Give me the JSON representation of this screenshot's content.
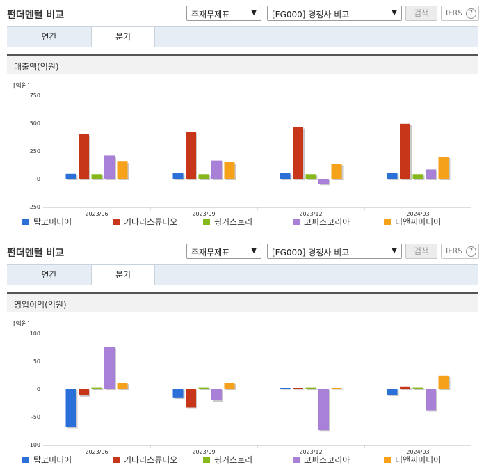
{
  "panels": [
    {
      "title": "펀더멘털 비교",
      "select1": "주재무제표",
      "select2": "[FG000] 경쟁사 비교",
      "search_label": "검색",
      "ifrs_label": "IFRS",
      "ifrs_help": "?",
      "tabs": [
        {
          "label": "연간",
          "active": false
        },
        {
          "label": "분기",
          "active": true
        }
      ],
      "metric_title": "매출액(억원)"
    },
    {
      "title": "펀더멘털 비교",
      "select1": "주재무제표",
      "select2": "[FG000] 경쟁사 비교",
      "search_label": "검색",
      "ifrs_label": "IFRS",
      "ifrs_help": "?",
      "tabs": [
        {
          "label": "연간",
          "active": false
        },
        {
          "label": "분기",
          "active": true
        }
      ],
      "metric_title": "영업이익(억원)"
    }
  ],
  "colors": {
    "series": [
      "#2b6fd8",
      "#c8361a",
      "#86b81c",
      "#a880d8",
      "#f5a11a"
    ]
  },
  "icons": {
    "dropdown": "chevron-down-icon",
    "help": "question-circle-icon"
  },
  "chart_data": [
    {
      "type": "bar",
      "unit_label": "[억원]",
      "categories": [
        "2023/06",
        "2023/09",
        "2023/12",
        "2024/03"
      ],
      "ylim": [
        -250,
        750
      ],
      "yticks": [
        750,
        500,
        250,
        0,
        -250
      ],
      "grid": false,
      "legend_position": "bottom",
      "series": [
        {
          "name": "탑코미디어",
          "values": [
            45,
            55,
            50,
            55
          ]
        },
        {
          "name": "키다리스튜디오",
          "values": [
            400,
            425,
            465,
            495
          ]
        },
        {
          "name": "핑거스토리",
          "values": [
            42,
            42,
            42,
            42
          ]
        },
        {
          "name": "코퍼스코리아",
          "values": [
            210,
            165,
            -45,
            85
          ]
        },
        {
          "name": "디앤씨미디어",
          "values": [
            155,
            150,
            135,
            200
          ]
        }
      ]
    },
    {
      "type": "bar",
      "unit_label": "[억원]",
      "categories": [
        "2023/06",
        "2023/09",
        "2023/12",
        "2024/03"
      ],
      "ylim": [
        -100,
        100
      ],
      "yticks": [
        100,
        50,
        0,
        -50,
        -100
      ],
      "grid": false,
      "legend_position": "bottom",
      "series": [
        {
          "name": "탑코미디어",
          "values": [
            -68,
            -16,
            2,
            -10
          ]
        },
        {
          "name": "키다리스튜디오",
          "values": [
            -11,
            -33,
            2,
            4
          ]
        },
        {
          "name": "핑거스토리",
          "values": [
            3,
            3,
            3,
            3
          ]
        },
        {
          "name": "코퍼스코리아",
          "values": [
            76,
            -20,
            -74,
            -38
          ]
        },
        {
          "name": "디앤씨미디어",
          "values": [
            11,
            11,
            2,
            24
          ]
        }
      ]
    }
  ]
}
